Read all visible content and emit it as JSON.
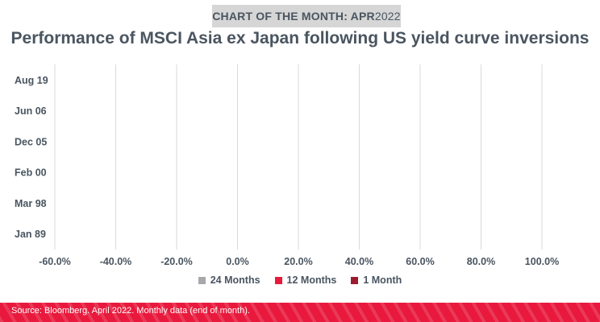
{
  "header": {
    "badge_label": "CHART OF THE MONTH: APR",
    "badge_year": "2022",
    "title": "Performance of MSCI Asia ex Japan following US yield curve inversions"
  },
  "footer": {
    "source": "Source: Bloomberg. April 2022. Monthly data (end of month)."
  },
  "legend": [
    {
      "label": "24 Months",
      "color": "#a6a8ab"
    },
    {
      "label": "12 Months",
      "color": "#e8193c"
    },
    {
      "label": "1 Month",
      "color": "#9b1c2e"
    }
  ],
  "chart_data": {
    "type": "bar",
    "orientation": "horizontal",
    "categories": [
      "Aug 19",
      "Jun 06",
      "Dec 05",
      "Feb 00",
      "Mar 98",
      "Jan 89"
    ],
    "series": [
      {
        "name": "24 Months",
        "values": [
          null,
          null,
          null,
          null,
          null,
          null
        ]
      },
      {
        "name": "12 Months",
        "values": [
          null,
          null,
          null,
          null,
          null,
          null
        ]
      },
      {
        "name": "1 Month",
        "values": [
          null,
          null,
          null,
          null,
          null,
          null
        ]
      }
    ],
    "x_ticks": [
      "-60.0%",
      "-40.0%",
      "-20.0%",
      "0.0%",
      "20.0%",
      "40.0%",
      "60.0%",
      "80.0%",
      "100.0%"
    ],
    "xlim": [
      -60,
      100
    ],
    "grid": true,
    "legend_position": "bottom"
  }
}
